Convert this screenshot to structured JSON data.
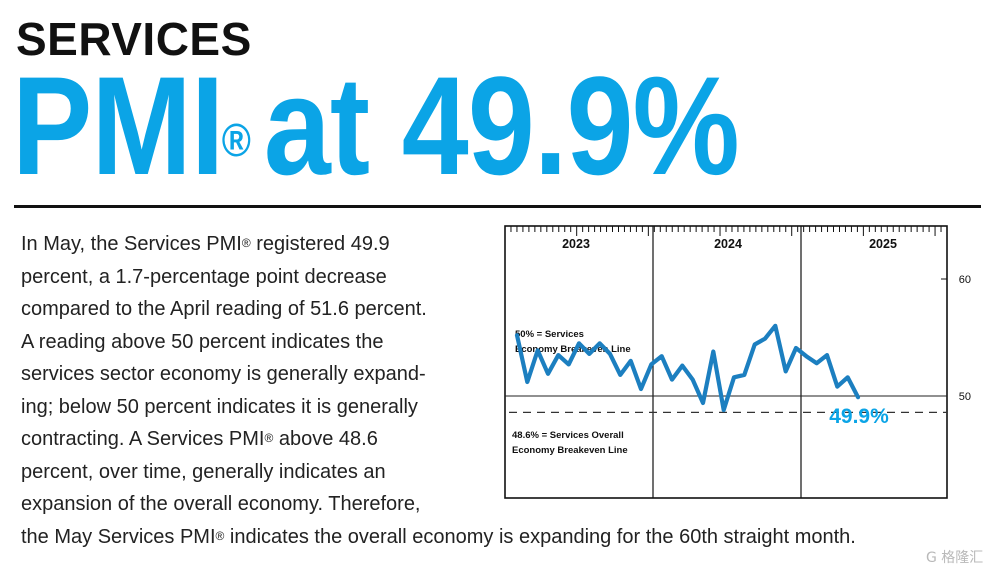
{
  "headline": {
    "line1": "SERVICES",
    "main_pre": "PMI",
    "registered": "®",
    "main_post": "at 49.9%"
  },
  "body": {
    "lines": [
      [
        "In May, the Services PMI",
        "®",
        " registered 49.9"
      ],
      [
        "percent, a 1.7-percentage point decrease",
        "",
        ""
      ],
      [
        "compared to the April reading of 51.6 percent.",
        "",
        ""
      ],
      [
        "A reading above 50 percent indicates the",
        "",
        ""
      ],
      [
        "services sector economy is generally expand-",
        "",
        ""
      ],
      [
        "ing; below 50 percent indicates it is generally",
        "",
        ""
      ],
      [
        "contracting. A Services PMI",
        "®",
        " above 48.6"
      ],
      [
        "percent, over time, generally indicates an",
        "",
        ""
      ],
      [
        "expansion of the overall economy. Therefore,",
        "",
        ""
      ],
      [
        "the May Services PMI",
        "®",
        " indicates the overall economy is expanding for the 60th straight month."
      ]
    ]
  },
  "chart_data": {
    "type": "line",
    "year_labels": [
      "2023",
      "2024",
      "2025"
    ],
    "ylim": [
      38,
      63
    ],
    "yticks": [
      60,
      50,
      40
    ],
    "series_color": "#1c7fc0",
    "accent_color": "#0ba4e6",
    "values": [
      55.2,
      51.2,
      53.9,
      51.9,
      53.5,
      52.7,
      54.5,
      53.6,
      54.5,
      53.6,
      51.8,
      53.0,
      50.6,
      52.7,
      53.4,
      51.4,
      52.6,
      51.4,
      49.4,
      53.8,
      48.8,
      51.6,
      51.8,
      54.4,
      54.9,
      56.0,
      52.1,
      54.1,
      53.4,
      52.8,
      53.5,
      50.8,
      51.6,
      49.9
    ],
    "breakeven_line": {
      "value": 50,
      "label_line1": "50% = Services",
      "label_line2": "Economy Breakeven Line"
    },
    "overall_line": {
      "value": 48.6,
      "label_line1": "48.6% = Services Overall",
      "label_line2": "Economy Breakeven Line"
    },
    "callout": "49.9%"
  },
  "watermark": "G 格隆汇"
}
